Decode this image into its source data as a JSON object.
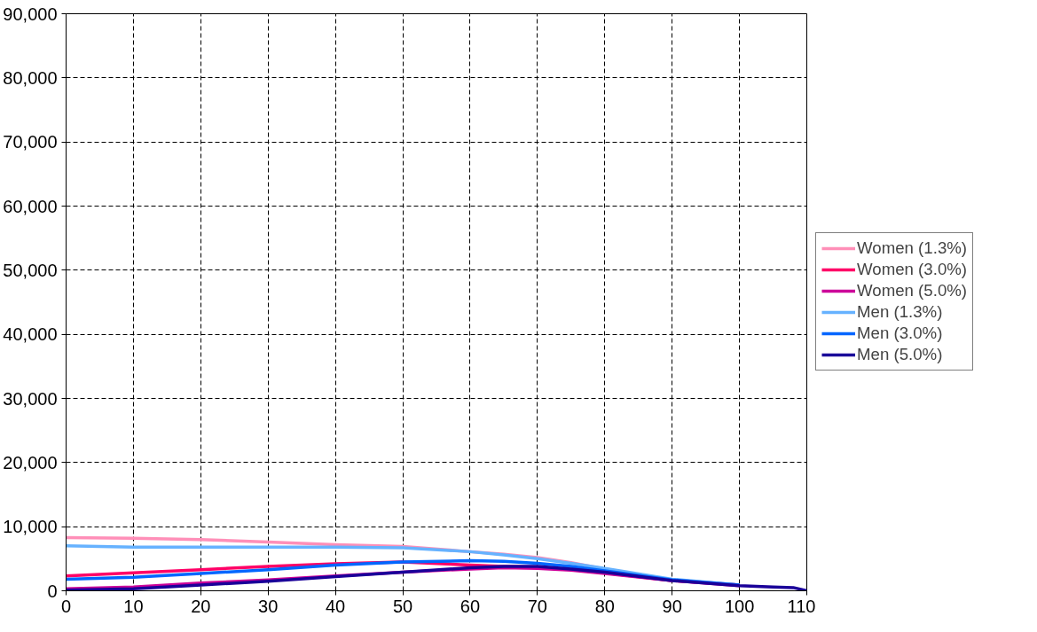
{
  "chart_data": {
    "type": "line",
    "x": [
      0,
      10,
      20,
      30,
      40,
      50,
      60,
      65,
      70,
      75,
      80,
      90,
      100,
      105,
      108,
      110
    ],
    "series": [
      {
        "name": "Women (1.3%)",
        "color": "#ff8fb8",
        "values": [
          8300,
          8200,
          8000,
          7600,
          7200,
          6900,
          6100,
          5700,
          5200,
          4400,
          3400,
          1700,
          900,
          null,
          null,
          null
        ]
      },
      {
        "name": "Women (3.0%)",
        "color": "#ff0066",
        "values": [
          2300,
          2800,
          3300,
          3800,
          4200,
          4500,
          4000,
          3800,
          3700,
          3300,
          2800,
          1600,
          900,
          null,
          null,
          null
        ]
      },
      {
        "name": "Women (5.0%)",
        "color": "#cc0099",
        "values": [
          300,
          600,
          1200,
          1700,
          2300,
          2900,
          3400,
          3600,
          3500,
          3200,
          2700,
          1600,
          800,
          null,
          null,
          null
        ]
      },
      {
        "name": "Men (1.3%)",
        "color": "#66b2ff",
        "values": [
          7000,
          6800,
          6800,
          6800,
          6800,
          6700,
          6100,
          5600,
          5000,
          4300,
          3500,
          1800,
          900,
          null,
          null,
          null
        ]
      },
      {
        "name": "Men (3.0%)",
        "color": "#0066ff",
        "values": [
          1800,
          2100,
          2700,
          3300,
          4000,
          4500,
          4700,
          4600,
          4300,
          3800,
          3100,
          1700,
          900,
          null,
          null,
          null
        ]
      },
      {
        "name": "Men (5.0%)",
        "color": "#1a0099",
        "values": [
          100,
          300,
          900,
          1500,
          2200,
          2900,
          3600,
          3800,
          3800,
          3400,
          2900,
          1600,
          800,
          600,
          500,
          0
        ]
      }
    ],
    "xlim": [
      0,
      110
    ],
    "xticks": [
      0,
      10,
      20,
      30,
      40,
      50,
      60,
      70,
      80,
      90,
      100,
      110
    ],
    "ylim": [
      0,
      90000
    ],
    "yticks": [
      {
        "value": 0,
        "label": "0"
      },
      {
        "value": 10000,
        "label": "10,000"
      },
      {
        "value": 20000,
        "label": "20,000"
      },
      {
        "value": 30000,
        "label": "30,000"
      },
      {
        "value": 40000,
        "label": "40,000"
      },
      {
        "value": 50000,
        "label": "50,000"
      },
      {
        "value": 60000,
        "label": "60,000"
      },
      {
        "value": 70000,
        "label": "70,000"
      },
      {
        "value": 80000,
        "label": "80,000"
      },
      {
        "value": 90000,
        "label": "90,000"
      }
    ],
    "grid": true,
    "legend": "right",
    "line_style": "solid",
    "marker": "none"
  }
}
